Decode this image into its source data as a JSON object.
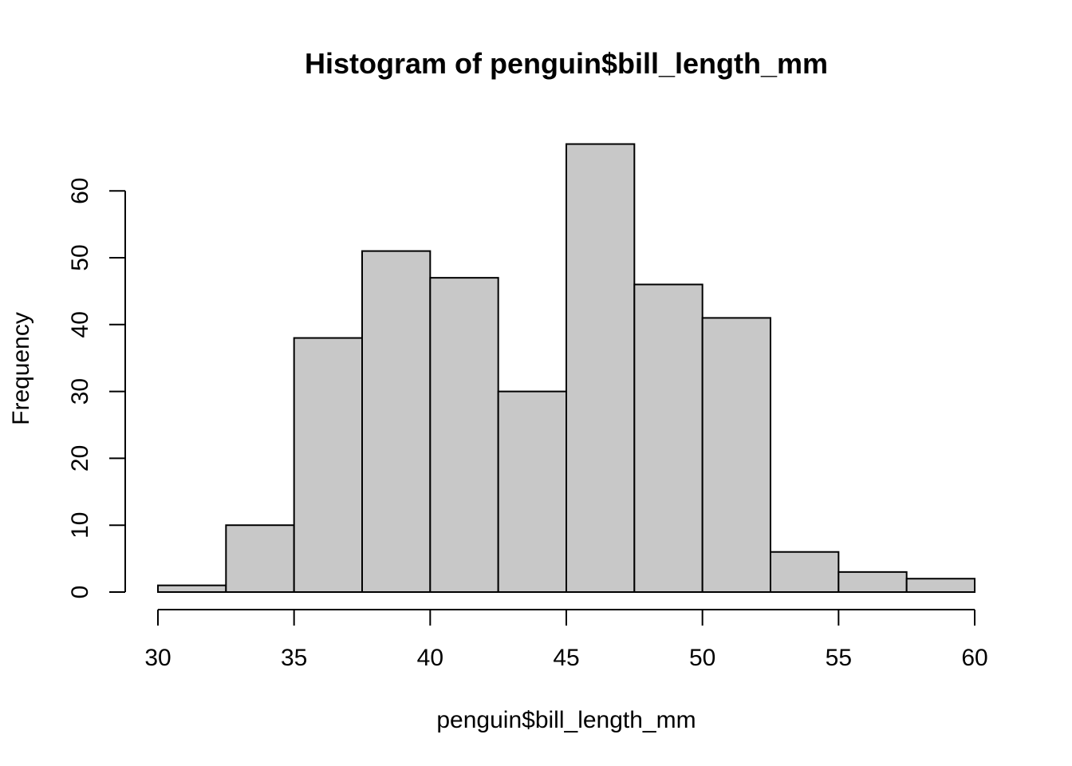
{
  "chart_data": {
    "type": "bar",
    "title": "Histogram of penguin$bill_length_mm",
    "xlabel": "penguin$bill_length_mm",
    "ylabel": "Frequency",
    "bins": [
      {
        "start": 30.0,
        "end": 32.5,
        "count": 1
      },
      {
        "start": 32.5,
        "end": 35.0,
        "count": 10
      },
      {
        "start": 35.0,
        "end": 37.5,
        "count": 38
      },
      {
        "start": 37.5,
        "end": 40.0,
        "count": 51
      },
      {
        "start": 40.0,
        "end": 42.5,
        "count": 47
      },
      {
        "start": 42.5,
        "end": 45.0,
        "count": 30
      },
      {
        "start": 45.0,
        "end": 47.5,
        "count": 67
      },
      {
        "start": 47.5,
        "end": 50.0,
        "count": 46
      },
      {
        "start": 50.0,
        "end": 52.5,
        "count": 41
      },
      {
        "start": 52.5,
        "end": 55.0,
        "count": 6
      },
      {
        "start": 55.0,
        "end": 57.5,
        "count": 3
      },
      {
        "start": 57.5,
        "end": 60.0,
        "count": 2
      }
    ],
    "xlim": [
      30,
      60
    ],
    "ylim": [
      0,
      67
    ],
    "xticks": [
      30,
      35,
      40,
      45,
      50,
      55,
      60
    ],
    "yticks": [
      0,
      10,
      20,
      30,
      40,
      50,
      60
    ],
    "bar_color": "#c8c8c8",
    "edge_color": "#000000",
    "grid": false,
    "legend": "none"
  }
}
